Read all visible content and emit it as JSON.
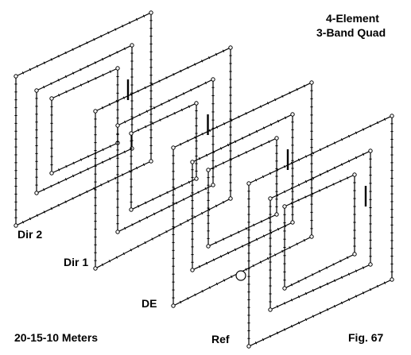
{
  "figure": {
    "title_line1": "4-Element",
    "title_line2": "3-Band Quad",
    "bands_caption": "20-15-10 Meters",
    "fig_number": "Fig. 67"
  },
  "elements": [
    {
      "key": "dir2",
      "label": "Dir 2",
      "loops": 3
    },
    {
      "key": "dir1",
      "label": "Dir 1",
      "loops": 3
    },
    {
      "key": "de",
      "label": "DE",
      "loops": 3
    },
    {
      "key": "ref",
      "label": "Ref",
      "loops": 3
    }
  ],
  "colors": {
    "ink": "#000000",
    "background": "#ffffff"
  },
  "feedpoint": {
    "name": "feed-point-marker"
  }
}
